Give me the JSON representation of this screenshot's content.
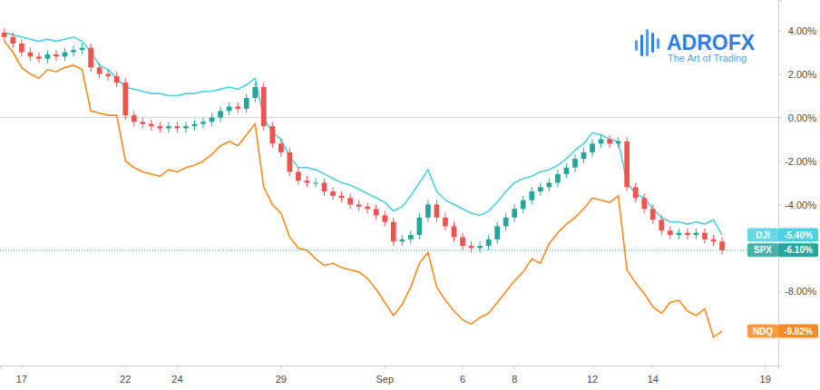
{
  "chart_data": {
    "type": "candlestick",
    "title": "ADROFX",
    "subtitle": "The Art of Trading",
    "categories": [
      null,
      null,
      "17",
      null,
      null,
      null,
      null,
      null,
      null,
      null,
      null,
      null,
      null,
      null,
      "22",
      null,
      null,
      null,
      null,
      null,
      "24",
      null,
      null,
      null,
      null,
      null,
      null,
      null,
      null,
      null,
      null,
      null,
      "29",
      null,
      null,
      null,
      null,
      null,
      null,
      null,
      null,
      null,
      null,
      null,
      "Sep",
      null,
      null,
      null,
      null,
      null,
      null,
      null,
      null,
      "6",
      null,
      null,
      null,
      null,
      null,
      "8",
      null,
      null,
      null,
      null,
      null,
      null,
      null,
      null,
      "12",
      null,
      null,
      null,
      null,
      null,
      null,
      "14",
      null,
      null,
      null,
      null,
      null,
      null,
      null,
      null,
      null,
      null,
      null,
      null,
      "19",
      null
    ],
    "ylim": [
      -11.4,
      5.4
    ],
    "yticks": [
      {
        "value": 4,
        "label": "4.00%"
      },
      {
        "value": 2,
        "label": "2.00%"
      },
      {
        "value": 0,
        "label": "0.00%"
      },
      {
        "value": -2,
        "label": "-2.00%"
      },
      {
        "value": -4,
        "label": "-4.00%"
      },
      {
        "value": -8,
        "label": "-8.00%"
      }
    ],
    "baseline": 0,
    "grid": false,
    "series": [
      {
        "name": "DJI",
        "type": "line",
        "color": "#4dd0e1",
        "values": [
          3.9,
          3.8,
          3.7,
          3.6,
          3.5,
          3.6,
          3.5,
          3.6,
          3.7,
          3.5,
          3.0,
          2.4,
          2.2,
          1.8,
          1.4,
          1.3,
          1.2,
          1.1,
          1.1,
          1.0,
          1.0,
          1.1,
          1.1,
          1.2,
          1.2,
          1.3,
          1.4,
          1.3,
          1.5,
          1.8,
          0.0,
          -0.7,
          -1.0,
          -1.8,
          -2.3,
          -2.3,
          -2.4,
          -2.6,
          -2.8,
          -3.0,
          -3.1,
          -3.3,
          -3.5,
          -3.7,
          -3.9,
          -4.3,
          -4.1,
          -3.6,
          -3.0,
          -2.4,
          -3.4,
          -3.8,
          -4.0,
          -4.2,
          -4.4,
          -4.5,
          -4.3,
          -3.9,
          -3.4,
          -3.0,
          -2.8,
          -2.7,
          -2.5,
          -2.4,
          -2.2,
          -1.9,
          -1.5,
          -1.2,
          -0.7,
          -0.8,
          -1.0,
          -1.1,
          -3.0,
          -3.5,
          -3.7,
          -4.2,
          -4.6,
          -4.8,
          -4.8,
          -4.9,
          -4.8,
          -4.9,
          -4.7,
          -5.4,
          null,
          null,
          null,
          null,
          null,
          null
        ],
        "value_labels": [
          null,
          null,
          null,
          null,
          null,
          null,
          null,
          null,
          null,
          null,
          null,
          null,
          null,
          null,
          null,
          null,
          null,
          null,
          null,
          null,
          null,
          null,
          null,
          null,
          null,
          null,
          null,
          null,
          null,
          null,
          null,
          null,
          null,
          null,
          null,
          null,
          null,
          null,
          null,
          null,
          null,
          null,
          null,
          null,
          null,
          null,
          null,
          null,
          null,
          null,
          null,
          null,
          null,
          null,
          null,
          null,
          null,
          null,
          null,
          null,
          null,
          null,
          null,
          null,
          null,
          null,
          null,
          null,
          null,
          null,
          null,
          null,
          null,
          null,
          null,
          null,
          null,
          null,
          null,
          null,
          null,
          null,
          null,
          "-5.40%",
          null,
          null,
          null,
          null,
          null,
          null
        ]
      },
      {
        "name": "NDQ",
        "type": "line",
        "color": "#f68b1f",
        "values": [
          3.5,
          3.0,
          2.3,
          2.0,
          1.8,
          2.2,
          2.1,
          2.3,
          2.4,
          2.2,
          0.3,
          0.2,
          0.1,
          0.1,
          -2.0,
          -2.3,
          -2.5,
          -2.6,
          -2.7,
          -2.4,
          -2.5,
          -2.3,
          -2.2,
          -2.0,
          -1.7,
          -1.3,
          -1.1,
          -1.3,
          -0.8,
          -0.3,
          -3.2,
          -4.0,
          -4.4,
          -5.5,
          -6.0,
          -6.1,
          -6.5,
          -6.8,
          -6.7,
          -6.9,
          -7.0,
          -7.1,
          -7.4,
          -7.9,
          -8.5,
          -9.1,
          -8.6,
          -7.8,
          -6.7,
          -6.2,
          -7.8,
          -8.4,
          -8.9,
          -9.3,
          -9.5,
          -9.2,
          -9.0,
          -8.5,
          -8.0,
          -7.5,
          -7.1,
          -6.5,
          -6.7,
          -5.8,
          -5.3,
          -4.9,
          -4.6,
          -4.2,
          -3.7,
          -3.8,
          -3.9,
          -3.6,
          -7.0,
          -7.6,
          -8.1,
          -8.7,
          -9.0,
          -8.5,
          -8.4,
          -8.9,
          -9.1,
          -8.8,
          -10.1,
          -9.82,
          null,
          null,
          null,
          null,
          null,
          null
        ],
        "value_labels": [
          null,
          null,
          null,
          null,
          null,
          null,
          null,
          null,
          null,
          null,
          null,
          null,
          null,
          null,
          null,
          null,
          null,
          null,
          null,
          null,
          null,
          null,
          null,
          null,
          null,
          null,
          null,
          null,
          null,
          null,
          null,
          null,
          null,
          null,
          null,
          null,
          null,
          null,
          null,
          null,
          null,
          null,
          null,
          null,
          null,
          null,
          null,
          null,
          null,
          null,
          null,
          null,
          null,
          null,
          null,
          null,
          null,
          null,
          null,
          null,
          null,
          null,
          null,
          null,
          null,
          null,
          null,
          null,
          null,
          null,
          null,
          null,
          null,
          null,
          null,
          null,
          null,
          null,
          null,
          null,
          null,
          null,
          null,
          "-9.82%",
          null,
          null,
          null,
          null,
          null,
          null
        ]
      },
      {
        "name": "SPX",
        "type": "candlestick",
        "color": "#26a69a",
        "open": [
          3.9,
          3.7,
          3.4,
          3.0,
          2.8,
          2.7,
          2.9,
          2.8,
          3.0,
          3.1,
          3.2,
          2.3,
          2.0,
          1.9,
          1.6,
          0.1,
          -0.2,
          -0.3,
          -0.4,
          -0.5,
          -0.4,
          -0.5,
          -0.4,
          -0.3,
          -0.2,
          0.0,
          0.3,
          0.5,
          0.4,
          0.9,
          1.4,
          -0.4,
          -1.2,
          -1.6,
          -2.5,
          -2.9,
          -3.0,
          -3.0,
          -3.4,
          -3.6,
          -3.7,
          -4.0,
          -4.1,
          -4.2,
          -4.5,
          -4.8,
          -5.7,
          -5.6,
          -5.4,
          -4.6,
          -4.0,
          -4.6,
          -5.0,
          -5.5,
          -5.9,
          -6.0,
          -5.9,
          -5.6,
          -5.0,
          -4.6,
          -4.2,
          -3.8,
          -3.4,
          -3.2,
          -3.0,
          -2.6,
          -2.3,
          -1.9,
          -1.6,
          -1.2,
          -1.0,
          -1.2,
          -1.1,
          -3.2,
          -3.7,
          -4.2,
          -4.7,
          -5.2,
          -5.4,
          -5.3,
          -5.4,
          -5.3,
          -5.6,
          -5.7,
          null,
          null,
          null,
          null,
          null,
          null
        ],
        "high": [
          4.1,
          3.9,
          3.6,
          3.2,
          3.0,
          3.1,
          3.1,
          3.2,
          3.3,
          3.4,
          3.4,
          2.5,
          2.2,
          2.1,
          1.8,
          0.3,
          0.0,
          -0.1,
          -0.2,
          -0.2,
          -0.2,
          -0.2,
          -0.1,
          0.0,
          0.2,
          0.5,
          0.7,
          0.7,
          1.1,
          1.6,
          1.6,
          -0.2,
          -1.0,
          -1.4,
          -2.3,
          -2.7,
          -2.8,
          -2.8,
          -3.2,
          -3.4,
          -3.5,
          -3.8,
          -3.9,
          -4.0,
          -4.3,
          -4.6,
          -5.4,
          -5.2,
          -4.4,
          -3.8,
          -3.8,
          -4.4,
          -4.8,
          -5.3,
          -5.7,
          -5.7,
          -5.4,
          -4.8,
          -4.4,
          -4.0,
          -3.6,
          -3.2,
          -3.0,
          -2.8,
          -2.4,
          -2.1,
          -1.7,
          -1.4,
          -1.0,
          -0.8,
          -0.8,
          -0.9,
          -0.9,
          -3.0,
          -3.5,
          -4.0,
          -4.5,
          -5.0,
          -5.1,
          -5.1,
          -5.1,
          -5.1,
          -5.4,
          -5.5,
          null,
          null,
          null,
          null,
          null,
          null
        ],
        "low": [
          3.5,
          3.2,
          2.8,
          2.6,
          2.5,
          2.5,
          2.6,
          2.6,
          2.8,
          2.9,
          2.1,
          1.8,
          1.7,
          1.4,
          -0.1,
          -0.4,
          -0.5,
          -0.6,
          -0.7,
          -0.7,
          -0.7,
          -0.7,
          -0.6,
          -0.5,
          -0.4,
          -0.2,
          0.1,
          0.2,
          0.2,
          0.7,
          -0.6,
          -1.4,
          -1.8,
          -2.7,
          -3.1,
          -3.2,
          -3.2,
          -3.6,
          -3.8,
          -3.9,
          -4.2,
          -4.3,
          -4.4,
          -4.7,
          -5.0,
          -5.9,
          -5.9,
          -5.8,
          -5.6,
          -4.8,
          -4.8,
          -5.2,
          -5.7,
          -6.1,
          -6.2,
          -6.2,
          -6.1,
          -5.8,
          -5.2,
          -4.8,
          -4.4,
          -4.0,
          -3.6,
          -3.4,
          -3.2,
          -2.8,
          -2.5,
          -2.1,
          -1.8,
          -1.4,
          -1.4,
          -1.4,
          -3.4,
          -3.9,
          -4.4,
          -4.9,
          -5.4,
          -5.6,
          -5.6,
          -5.6,
          -5.6,
          -5.8,
          -5.9,
          -6.3,
          null,
          null,
          null,
          null,
          null,
          null
        ],
        "close": [
          3.7,
          3.4,
          3.0,
          2.8,
          2.7,
          2.9,
          2.8,
          3.0,
          3.1,
          3.2,
          2.3,
          2.0,
          1.9,
          1.6,
          0.1,
          -0.2,
          -0.3,
          -0.4,
          -0.5,
          -0.4,
          -0.5,
          -0.4,
          -0.3,
          -0.2,
          0.0,
          0.3,
          0.5,
          0.4,
          0.9,
          1.4,
          -0.4,
          -1.2,
          -1.6,
          -2.5,
          -2.9,
          -3.0,
          -3.0,
          -3.4,
          -3.6,
          -3.7,
          -4.0,
          -4.1,
          -4.2,
          -4.5,
          -4.8,
          -5.7,
          -5.6,
          -5.4,
          -4.6,
          -4.0,
          -4.6,
          -5.0,
          -5.5,
          -5.9,
          -6.0,
          -5.9,
          -5.6,
          -5.0,
          -4.6,
          -4.2,
          -3.8,
          -3.4,
          -3.2,
          -3.0,
          -2.6,
          -2.3,
          -1.9,
          -1.6,
          -1.2,
          -1.0,
          -1.2,
          -1.1,
          -3.2,
          -3.7,
          -4.2,
          -4.7,
          -5.2,
          -5.4,
          -5.3,
          -5.4,
          -5.3,
          -5.6,
          -5.7,
          -6.1,
          null,
          null,
          null,
          null,
          null,
          null
        ],
        "value_labels": [
          null,
          null,
          null,
          null,
          null,
          null,
          null,
          null,
          null,
          null,
          null,
          null,
          null,
          null,
          null,
          null,
          null,
          null,
          null,
          null,
          null,
          null,
          null,
          null,
          null,
          null,
          null,
          null,
          null,
          null,
          null,
          null,
          null,
          null,
          null,
          null,
          null,
          null,
          null,
          null,
          null,
          null,
          null,
          null,
          null,
          null,
          null,
          null,
          null,
          null,
          null,
          null,
          null,
          null,
          null,
          null,
          null,
          null,
          null,
          null,
          null,
          null,
          null,
          null,
          null,
          null,
          null,
          null,
          null,
          null,
          null,
          null,
          null,
          null,
          null,
          null,
          null,
          null,
          null,
          null,
          null,
          null,
          null,
          "-6.10%",
          null,
          null,
          null,
          null,
          null,
          null
        ]
      }
    ]
  }
}
